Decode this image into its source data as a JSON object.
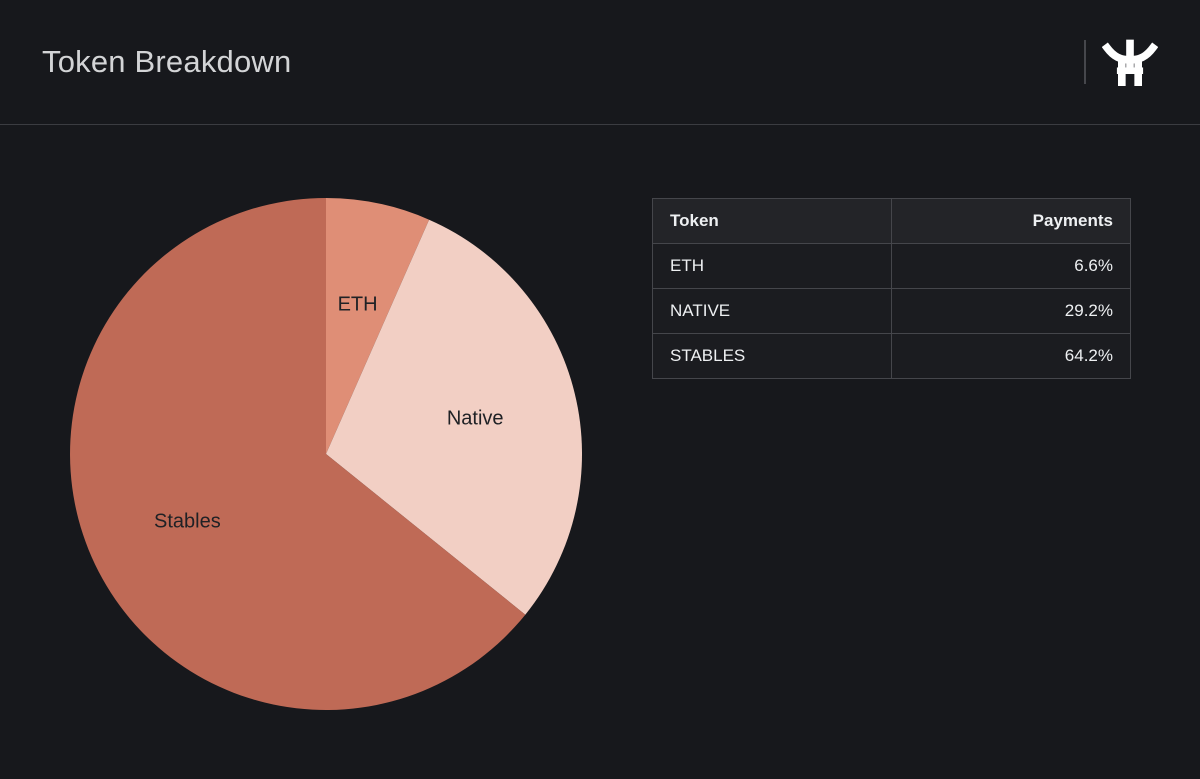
{
  "header": {
    "title": "Token Breakdown",
    "logo": "torii-gate-logo"
  },
  "chart_data": {
    "type": "pie",
    "title": "Token Breakdown",
    "categories": [
      "ETH",
      "Native",
      "Stables"
    ],
    "values": [
      6.6,
      29.2,
      64.2
    ],
    "unit": "%",
    "palette": [
      "#df8e76",
      "#f2cfc4",
      "#bf6a56"
    ],
    "label_color": "#1f2125",
    "start_angle_deg": 0,
    "direction": "clockwise",
    "labels_position": "inside",
    "legend": "none"
  },
  "table": {
    "columns": [
      "Token",
      "Payments"
    ],
    "rows": [
      {
        "token": "ETH",
        "payments": "6.6%"
      },
      {
        "token": "NATIVE",
        "payments": "29.2%"
      },
      {
        "token": "STABLES",
        "payments": "64.2%"
      }
    ]
  }
}
